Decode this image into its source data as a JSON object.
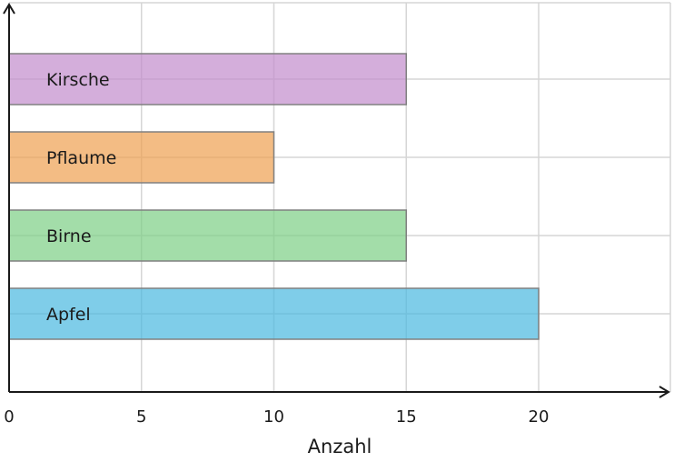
{
  "chart_data": {
    "type": "bar",
    "orientation": "horizontal",
    "categories": [
      "Apfel",
      "Birne",
      "Pflaume",
      "Kirsche"
    ],
    "values": [
      20,
      15,
      10,
      15
    ],
    "colors": [
      "#49b8e0",
      "#7ccf84",
      "#eea050",
      "#c28ccc"
    ],
    "xlabel": "Anzahl",
    "ylabel": "",
    "xlim": [
      0,
      25
    ],
    "xticks": [
      0,
      5,
      10,
      15,
      20
    ],
    "grid": true,
    "labels_inside_bars": true
  }
}
